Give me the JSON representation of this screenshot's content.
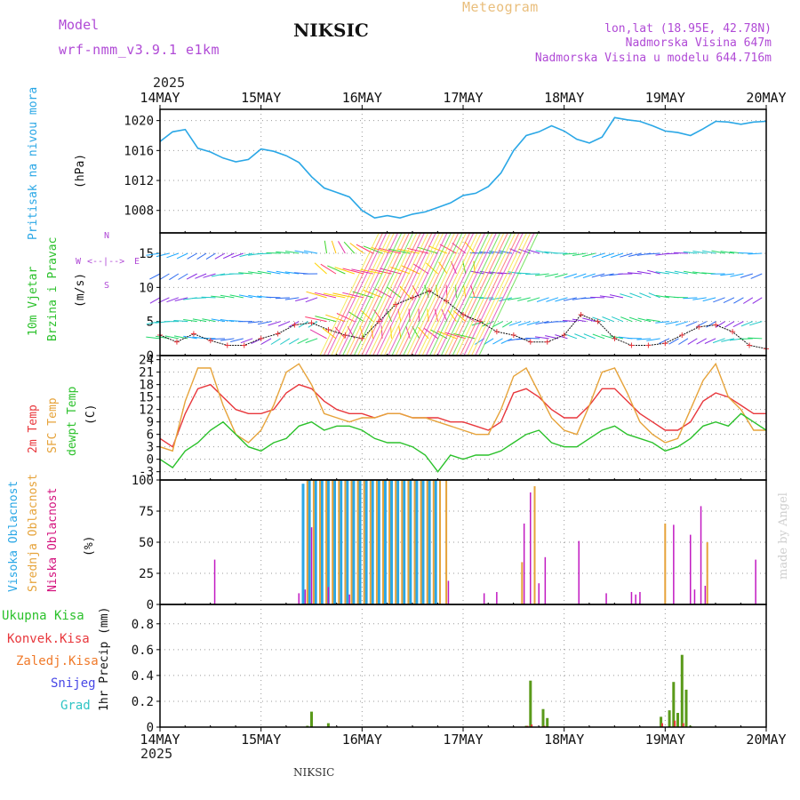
{
  "header": {
    "model_label": "Model",
    "model_name": "wrf-nmm_v3.9.1 e1km",
    "station": "NIKSIC",
    "title": "Meteogram",
    "coords": "lon,lat (18.95E, 42.78N)",
    "elevation": "Nadmorska Visina 647m",
    "model_elevation": "Nadmorska Visina u modelu 644.716m",
    "year_top": "2025",
    "year_bottom": "2025",
    "footer_station": "NIKSIC",
    "watermark": "made by Angel"
  },
  "time_axis": {
    "labels": [
      "14MAY",
      "15MAY",
      "16MAY",
      "17MAY",
      "18MAY",
      "19MAY",
      "20MAY"
    ]
  },
  "panel_labels": {
    "pressure": [
      "Pritisak na nivou mora",
      "(hPa)"
    ],
    "wind": [
      "10m Vjetar",
      "Brzina i Pravac",
      "(m/s)"
    ],
    "wind_compass": [
      "N",
      "W",
      "E",
      "S"
    ],
    "temp": [
      "2m Temp",
      "SFC Temp",
      "dewpt Temp",
      "(C)"
    ],
    "cloud": [
      "Visoka Oblacnost",
      "Srednja Oblacnost",
      "Niska Oblacnost",
      "(%)"
    ],
    "precip": [
      "Ukupna Kisa",
      "Konvek.Kisa",
      "Zaledj.Kisa",
      "Snijeg",
      "Grad",
      "1hr Precip (mm)"
    ]
  },
  "colors": {
    "pressure": "#2aa7e6",
    "temp2m": "#e8373c",
    "sfc": "#e6a33a",
    "dew": "#2bc12b",
    "cloud_high": "#2aa7e6",
    "cloud_mid": "#e6a33a",
    "cloud_low": "#c21ac2",
    "precip_total": "#2bc12b",
    "precip_conv": "#e8373c",
    "precip_frz": "#f07a2a",
    "snow": "#4747e6",
    "hail": "#2ec4c4",
    "label_purple": "#b04ad6"
  },
  "chart_data": [
    {
      "type": "line",
      "panel": "pressure",
      "ylabel": "(hPa)",
      "ylim": [
        1005,
        1021.5
      ],
      "yticks": [
        1008,
        1012,
        1016,
        1020
      ],
      "series": [
        {
          "name": "Pritisak na nivou mora",
          "x": [
            0,
            3,
            6,
            9,
            12,
            15,
            18,
            21,
            24,
            27,
            30,
            33,
            36,
            39,
            42,
            45,
            48,
            51,
            54,
            57,
            60,
            63,
            66,
            69,
            72,
            75,
            78,
            81,
            84,
            87,
            90,
            93,
            96,
            99,
            102,
            105,
            108,
            111,
            114,
            117,
            120,
            123,
            126,
            129,
            132,
            135,
            138,
            141,
            144
          ],
          "y": [
            1017.2,
            1018.5,
            1018.8,
            1016.3,
            1015.8,
            1015.0,
            1014.5,
            1014.8,
            1016.2,
            1015.9,
            1015.3,
            1014.4,
            1012.5,
            1011.0,
            1010.4,
            1009.8,
            1008.0,
            1007.0,
            1007.3,
            1007.0,
            1007.5,
            1007.8,
            1008.4,
            1009.0,
            1010.0,
            1010.3,
            1011.2,
            1013.0,
            1016.0,
            1018.0,
            1018.5,
            1019.3,
            1018.6,
            1017.5,
            1017.0,
            1017.8,
            1020.4,
            1020.1,
            1019.9,
            1019.3,
            1018.6,
            1018.4,
            1018.0,
            1018.9,
            1019.9,
            1019.8,
            1019.5,
            1019.8,
            1019.9
          ]
        }
      ]
    },
    {
      "type": "line",
      "panel": "wind",
      "ylabel": "(m/s)",
      "ylim": [
        0,
        18
      ],
      "yticks": [
        0,
        5,
        10,
        15
      ],
      "series": [
        {
          "name": "Brzina",
          "x": [
            0,
            4,
            8,
            12,
            16,
            20,
            24,
            28,
            32,
            36,
            40,
            44,
            48,
            52,
            56,
            60,
            64,
            68,
            72,
            76,
            80,
            84,
            88,
            92,
            96,
            100,
            104,
            108,
            112,
            116,
            120,
            124,
            128,
            132,
            136,
            140,
            144
          ],
          "y": [
            3.0,
            2.0,
            3.2,
            2.2,
            1.5,
            1.5,
            2.5,
            3.2,
            4.5,
            4.8,
            3.8,
            3.0,
            2.5,
            5.0,
            7.5,
            8.5,
            9.5,
            8.0,
            6.0,
            5.0,
            3.5,
            3.0,
            2.0,
            2.0,
            3.0,
            6.0,
            5.0,
            2.5,
            1.5,
            1.5,
            1.8,
            3.0,
            4.2,
            4.5,
            3.5,
            1.5,
            1.0
          ]
        }
      ]
    },
    {
      "type": "line",
      "panel": "temp",
      "ylabel": "(C)",
      "ylim": [
        -5,
        25
      ],
      "yticks": [
        -3,
        0,
        3,
        6,
        9,
        12,
        15,
        18,
        21,
        24
      ],
      "series": [
        {
          "name": "2m Temp",
          "x": [
            0,
            3,
            6,
            9,
            12,
            15,
            18,
            21,
            24,
            27,
            30,
            33,
            36,
            39,
            42,
            45,
            48,
            51,
            54,
            57,
            60,
            63,
            66,
            69,
            72,
            75,
            78,
            81,
            84,
            87,
            90,
            93,
            96,
            99,
            102,
            105,
            108,
            111,
            114,
            117,
            120,
            123,
            126,
            129,
            132,
            135,
            138,
            141,
            144
          ],
          "y": [
            5,
            3,
            11,
            17,
            18,
            15,
            12,
            11,
            11,
            12,
            16,
            18,
            17,
            14,
            12,
            11,
            11,
            10,
            11,
            11,
            10,
            10,
            10,
            9,
            9,
            8,
            7,
            9,
            16,
            17,
            15,
            12,
            10,
            10,
            13,
            17,
            17,
            14,
            11,
            9,
            7,
            7,
            9,
            14,
            16,
            15,
            13,
            11,
            11
          ]
        },
        {
          "name": "SFC Temp",
          "x": [
            0,
            3,
            6,
            9,
            12,
            15,
            18,
            21,
            24,
            27,
            30,
            33,
            36,
            39,
            42,
            45,
            48,
            51,
            54,
            57,
            60,
            63,
            66,
            69,
            72,
            75,
            78,
            81,
            84,
            87,
            90,
            93,
            96,
            99,
            102,
            105,
            108,
            111,
            114,
            117,
            120,
            123,
            126,
            129,
            132,
            135,
            138,
            141,
            144
          ],
          "y": [
            3,
            2,
            14,
            22,
            22,
            13,
            6,
            4,
            7,
            13,
            21,
            23,
            18,
            11,
            10,
            9,
            10,
            10,
            11,
            11,
            10,
            10,
            9,
            8,
            7,
            6,
            6,
            12,
            20,
            22,
            16,
            10,
            7,
            6,
            13,
            21,
            22,
            16,
            9,
            6,
            4,
            5,
            12,
            19,
            23,
            15,
            12,
            7,
            7
          ]
        },
        {
          "name": "dewpt Temp",
          "x": [
            0,
            3,
            6,
            9,
            12,
            15,
            18,
            21,
            24,
            27,
            30,
            33,
            36,
            39,
            42,
            45,
            48,
            51,
            54,
            57,
            60,
            63,
            66,
            69,
            72,
            75,
            78,
            81,
            84,
            87,
            90,
            93,
            96,
            99,
            102,
            105,
            108,
            111,
            114,
            117,
            120,
            123,
            126,
            129,
            132,
            135,
            138,
            141,
            144
          ],
          "y": [
            0,
            -2,
            2,
            4,
            7,
            9,
            6,
            3,
            2,
            4,
            5,
            8,
            9,
            7,
            8,
            8,
            7,
            5,
            4,
            4,
            3,
            1,
            -3,
            1,
            0,
            1,
            1,
            2,
            4,
            6,
            7,
            4,
            3,
            3,
            5,
            7,
            8,
            6,
            5,
            4,
            2,
            3,
            5,
            8,
            9,
            8,
            11,
            9,
            7
          ]
        }
      ]
    },
    {
      "type": "bar",
      "panel": "cloud",
      "ylabel": "(%)",
      "ylim": [
        0,
        100
      ],
      "yticks": [
        0,
        25,
        50,
        75,
        100
      ],
      "series": [
        {
          "name": "Visoka Oblacnost",
          "x": [
            34,
            35.5,
            37,
            38.5,
            40,
            41.5,
            43,
            44.5,
            46,
            47.5,
            49,
            50.5,
            52,
            53.5,
            55,
            56.5,
            58,
            59.5,
            61,
            62.5,
            64,
            65.5
          ],
          "y": [
            97,
            100,
            100,
            100,
            100,
            100,
            100,
            100,
            100,
            100,
            100,
            100,
            100,
            100,
            100,
            100,
            100,
            100,
            100,
            100,
            100,
            100
          ]
        },
        {
          "name": "Srednja Oblacnost",
          "x": [
            35,
            36.5,
            38,
            39.5,
            41,
            42.5,
            44,
            45.5,
            47,
            48.5,
            50,
            51.5,
            53,
            54.5,
            56,
            57.5,
            59,
            60.5,
            62,
            63.5,
            65,
            66.5,
            68,
            86,
            89,
            120,
            130
          ],
          "y": [
            100,
            100,
            100,
            100,
            100,
            100,
            100,
            100,
            100,
            100,
            100,
            100,
            100,
            100,
            100,
            100,
            100,
            100,
            100,
            100,
            100,
            100,
            100,
            34,
            95,
            65,
            50
          ]
        },
        {
          "name": "Niska Oblacnost",
          "x": [
            13,
            33,
            34.5,
            36,
            40,
            45,
            68.5,
            77,
            80,
            86.5,
            88,
            90,
            91.5,
            99.5,
            106,
            112,
            113,
            114,
            122,
            126,
            127,
            128.5,
            129.5,
            141.5
          ],
          "y": [
            36,
            9,
            12,
            62,
            14,
            8,
            19,
            9,
            10,
            65,
            90,
            17,
            38,
            51,
            9,
            10,
            8,
            10,
            64,
            56,
            12,
            79,
            15,
            36
          ]
        }
      ]
    },
    {
      "type": "bar",
      "panel": "precip",
      "ylabel": "1hr Precip (mm)",
      "ylim": [
        0,
        0.95
      ],
      "yticks": [
        0,
        0.2,
        0.4,
        0.6,
        0.8
      ],
      "series": [
        {
          "name": "Ukupna Kisa",
          "x": [
            35,
            36,
            40,
            87,
            88,
            91,
            92,
            119,
            121,
            122,
            123,
            124,
            125,
            126
          ],
          "y": [
            0.01,
            0.12,
            0.03,
            0.01,
            0.36,
            0.14,
            0.07,
            0.08,
            0.13,
            0.35,
            0.11,
            0.56,
            0.29,
            0.01
          ]
        },
        {
          "name": "Konvek.Kisa",
          "x": [
            87.3,
            88.3,
            91.3,
            119.3,
            122.3,
            124.3
          ],
          "y": [
            0.01,
            0.02,
            0.01,
            0.03,
            0.05,
            0.03
          ]
        }
      ]
    }
  ]
}
